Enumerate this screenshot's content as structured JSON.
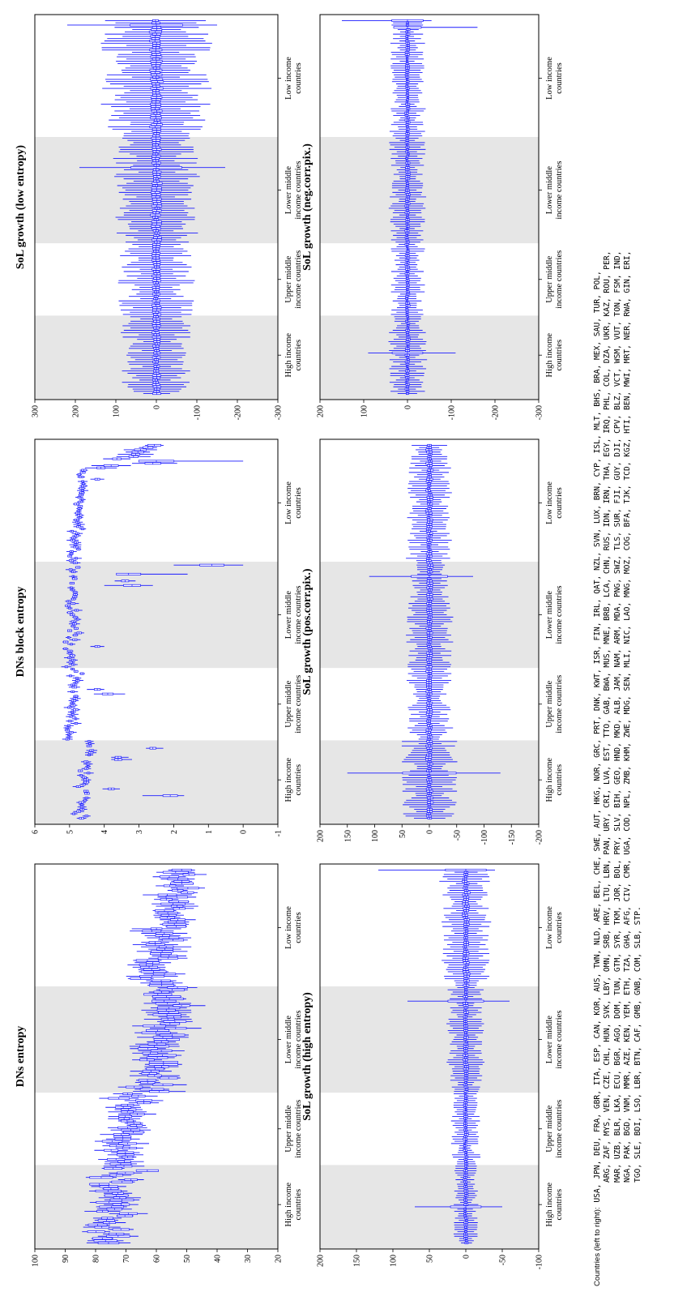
{
  "figure": {
    "band_labels": [
      [
        "High income",
        "countries"
      ],
      [
        "Upper middle",
        "income countries"
      ],
      [
        "Lower middle",
        "income countries"
      ],
      [
        "Low income",
        "countries"
      ]
    ],
    "caption_lead": "Countries (left to right):",
    "caption_lines": [
      "USA, JPN, DEU, FRA, GBR, ITA, ESP, CAN, KOR, AUS, TWN, NLD, ARE, BEL, CHE, SWE, AUT, HKG, NOR, GRC, PRT, DNK, KWT, ISR, FIN, IRL, QAT, NZL, SVN, LUX, BRN, CYP, ISL, MLT, BHS, BRA, MEX, SAU, TUR, POL,",
      "ARG, ZAF, MYS, VEN, CZE, CHL, HUN, SVK, LBY, OMN, SRB, HRV, LTU, LBN, PAN, URY, CRI, LVA, EST, TTO, GAB, BWA, MUS, MNE, BRB, LCA, CHN, RUS, IDN, IRN, THA, EGY, IRQ, PHL, COL, DZA, UKR, KAZ, ROU, PER,",
      "MAR, UZB, BLR, LKA, ECU, BGR, AGO, DOM, TUN, GTM, SYR, TKM, JOR, BOL, PRY, SLV, BIH, GEO, HND, MKD, ALB, JAM, NAM, ARM, MDA, PNG, SWZ, TLS, SUR, FJI, GUY, DJI, CPV, BLZ, VCT, WSM, VUT, TON, FSM, IND,",
      "NGA, PAK, BGD, VNM, MMR, AZE, KEN, YEM, ETH, TZA, GHA, AFG, CIV, CMR, UGA, COD, NPL, ZMB, KHM, ZWE, MDG, SEN, MLI, NIC, LAO, MNG, MOZ, COG, BFA, TJK, TCD, KGZ, HTI, BEN, MWI, MRT, NER, RWA, GIN, ERI,",
      "TGO, SLE, BDI, LSO, LBR, BTN, CAF, GMB, GNB, COM, SLB, STP."
    ],
    "colors": {
      "box": "#1a1aff",
      "band": "#e6e6e6",
      "axis": "#000000"
    }
  },
  "chart_data": [
    {
      "type": "box",
      "title": "DNs entropy",
      "ylim": [
        20,
        100
      ],
      "yticks": [
        20,
        30,
        40,
        50,
        60,
        70,
        80,
        90,
        100
      ],
      "ytick_labels": [
        "20",
        "30",
        "40",
        "50",
        "60",
        "70",
        "80",
        "90",
        "100"
      ],
      "income_groups_country_counts": [
        35,
        32,
        47,
        52
      ],
      "segments": [
        {
          "from": 0,
          "to": 35,
          "start": 75,
          "end": 72,
          "noise": 12,
          "spread": 5,
          "iqr": 6
        },
        {
          "from": 35,
          "to": 67,
          "start": 72,
          "end": 66,
          "noise": 9,
          "spread": 5,
          "iqr": 5
        },
        {
          "from": 67,
          "to": 114,
          "start": 62,
          "end": 55,
          "noise": 8,
          "spread": 6,
          "iqr": 7
        },
        {
          "from": 114,
          "to": 166,
          "start": 60,
          "end": 52,
          "noise": 7,
          "spread": 6,
          "iqr": 6
        }
      ]
    },
    {
      "type": "box",
      "title": "DNs block entropy",
      "ylim": [
        -1,
        6
      ],
      "yticks": [
        -1,
        0,
        1,
        2,
        3,
        4,
        5,
        6
      ],
      "ytick_labels": [
        "-1",
        "0",
        "1",
        "2",
        "3",
        "4",
        "5",
        "6"
      ],
      "income_groups_country_counts": [
        35,
        32,
        47,
        52
      ],
      "segments": [
        {
          "from": 0,
          "to": 35,
          "start": 4.7,
          "end": 4.4,
          "noise": 0.25,
          "spread": 0.12,
          "iqr": 0.1
        },
        {
          "from": 35,
          "to": 67,
          "start": 5.0,
          "end": 4.8,
          "noise": 0.2,
          "spread": 0.12,
          "iqr": 0.1
        },
        {
          "from": 67,
          "to": 114,
          "start": 5.0,
          "end": 4.8,
          "noise": 0.25,
          "spread": 0.12,
          "iqr": 0.1
        },
        {
          "from": 114,
          "to": 155,
          "start": 4.9,
          "end": 4.6,
          "noise": 0.2,
          "spread": 0.12,
          "iqr": 0.1
        },
        {
          "from": 155,
          "to": 166,
          "start": 4.0,
          "end": 2.6,
          "noise": 0.3,
          "spread": 0.4,
          "iqr": 0.35
        }
      ],
      "outliers": [
        {
          "country": 10,
          "median": 2.1,
          "lo": 1.7,
          "hi": 2.9
        },
        {
          "country": 13,
          "median": 3.8,
          "lo": 3.55,
          "hi": 4.05
        },
        {
          "country": 26,
          "median": 3.6,
          "lo": 3.2,
          "hi": 3.8
        },
        {
          "country": 27,
          "median": 3.6,
          "lo": 3.3,
          "hi": 3.8
        },
        {
          "country": 31,
          "median": 2.6,
          "lo": 2.3,
          "hi": 2.8
        },
        {
          "country": 55,
          "median": 3.9,
          "lo": 3.4,
          "hi": 4.3
        },
        {
          "country": 57,
          "median": 4.2,
          "lo": 4.0,
          "hi": 4.5
        },
        {
          "country": 76,
          "median": 4.2,
          "lo": 4.0,
          "hi": 4.4
        },
        {
          "country": 103,
          "median": 3.2,
          "lo": 2.6,
          "hi": 4.0
        },
        {
          "country": 105,
          "median": 3.4,
          "lo": 3.1,
          "hi": 3.7
        },
        {
          "country": 108,
          "median": 3.3,
          "lo": 1.6,
          "hi": 3.6
        },
        {
          "country": 112,
          "median": 0.9,
          "lo": 0.0,
          "hi": 2.0
        },
        {
          "country": 150,
          "median": 4.2,
          "lo": 4.0,
          "hi": 4.4
        },
        {
          "country": 157,
          "median": 2.6,
          "lo": 1.9,
          "hi": 3.2
        },
        {
          "country": 158,
          "median": 2.5,
          "lo": 0.0,
          "hi": 2.9
        }
      ]
    },
    {
      "type": "box",
      "title": "SoL growth (low entropy)",
      "ylim": [
        -300,
        300
      ],
      "yticks": [
        -300,
        -200,
        -100,
        0,
        100,
        200,
        300
      ],
      "ytick_labels": [
        "-300",
        "-200",
        "-100",
        "0",
        "100",
        "200",
        "300"
      ],
      "income_groups_country_counts": [
        35,
        32,
        47,
        52
      ],
      "segments": [
        {
          "from": 0,
          "to": 35,
          "start": 0,
          "end": 0,
          "noise": 4,
          "spread": 60,
          "iqr": 15
        },
        {
          "from": 35,
          "to": 67,
          "start": 0,
          "end": 0,
          "noise": 4,
          "spread": 65,
          "iqr": 16
        },
        {
          "from": 67,
          "to": 114,
          "start": 0,
          "end": 0,
          "noise": 4,
          "spread": 75,
          "iqr": 18
        },
        {
          "from": 114,
          "to": 166,
          "start": 0,
          "end": 0,
          "noise": 5,
          "spread": 95,
          "iqr": 22
        }
      ],
      "outliers": [
        {
          "country": 100,
          "median": 0,
          "lo": -170,
          "hi": 190
        },
        {
          "country": 163,
          "median": 0,
          "lo": -150,
          "hi": 220
        }
      ]
    },
    {
      "type": "box",
      "title": "SoL growth (high entropy)",
      "ylim": [
        -100,
        200
      ],
      "yticks": [
        -100,
        -50,
        0,
        50,
        100,
        150,
        200
      ],
      "ytick_labels": [
        "-100",
        "-50",
        "0",
        "50",
        "100",
        "150",
        "200"
      ],
      "income_groups_country_counts": [
        35,
        32,
        47,
        52
      ],
      "segments": [
        {
          "from": 0,
          "to": 35,
          "start": 0,
          "end": 0,
          "noise": 2,
          "spread": 12,
          "iqr": 4
        },
        {
          "from": 35,
          "to": 67,
          "start": 0,
          "end": 0,
          "noise": 2,
          "spread": 14,
          "iqr": 4
        },
        {
          "from": 67,
          "to": 114,
          "start": 0,
          "end": 0,
          "noise": 2,
          "spread": 18,
          "iqr": 5
        },
        {
          "from": 114,
          "to": 166,
          "start": 0,
          "end": 0,
          "noise": 3,
          "spread": 24,
          "iqr": 6
        }
      ],
      "outliers": [
        {
          "country": 16,
          "median": 0,
          "lo": -50,
          "hi": 70
        },
        {
          "country": 107,
          "median": 0,
          "lo": -60,
          "hi": 80
        },
        {
          "country": 165,
          "median": 0,
          "lo": -40,
          "hi": 120
        }
      ]
    },
    {
      "type": "box",
      "title": "SoL growth (pos.corr.pix.)",
      "ylim": [
        -200,
        200
      ],
      "yticks": [
        -200,
        -150,
        -100,
        -50,
        0,
        50,
        100,
        150,
        200
      ],
      "ytick_labels": [
        "-200",
        "-150",
        "-100",
        "-50",
        "0",
        "50",
        "100",
        "150",
        "200"
      ],
      "income_groups_country_counts": [
        35,
        32,
        47,
        52
      ],
      "segments": [
        {
          "from": 0,
          "to": 35,
          "start": 0,
          "end": 0,
          "noise": 3,
          "spread": 35,
          "iqr": 8
        },
        {
          "from": 35,
          "to": 67,
          "start": 0,
          "end": 0,
          "noise": 3,
          "spread": 30,
          "iqr": 8
        },
        {
          "from": 67,
          "to": 114,
          "start": 0,
          "end": 0,
          "noise": 3,
          "spread": 30,
          "iqr": 8
        },
        {
          "from": 114,
          "to": 166,
          "start": 0,
          "end": 0,
          "noise": 3,
          "spread": 28,
          "iqr": 8
        }
      ],
      "outliers": [
        {
          "country": 20,
          "median": 0,
          "lo": -130,
          "hi": 150
        },
        {
          "country": 107,
          "median": 0,
          "lo": -80,
          "hi": 110
        }
      ]
    },
    {
      "type": "box",
      "title": "SoL growth (neg.corr.pix.)",
      "ylim": [
        -300,
        200
      ],
      "yticks": [
        -300,
        -200,
        -100,
        0,
        100,
        200
      ],
      "ytick_labels": [
        "-300",
        "-200",
        "-100",
        "0",
        "100",
        "200"
      ],
      "income_groups_country_counts": [
        35,
        32,
        47,
        52
      ],
      "segments": [
        {
          "from": 0,
          "to": 35,
          "start": 0,
          "end": 0,
          "noise": 3,
          "spread": 30,
          "iqr": 7
        },
        {
          "from": 35,
          "to": 67,
          "start": 0,
          "end": 0,
          "noise": 3,
          "spread": 30,
          "iqr": 7
        },
        {
          "from": 67,
          "to": 114,
          "start": 0,
          "end": 0,
          "noise": 3,
          "spread": 30,
          "iqr": 7
        },
        {
          "from": 114,
          "to": 166,
          "start": 0,
          "end": 0,
          "noise": 3,
          "spread": 28,
          "iqr": 7
        }
      ],
      "outliers": [
        {
          "country": 18,
          "median": 0,
          "lo": -110,
          "hi": 90
        },
        {
          "country": 162,
          "median": 0,
          "lo": -160,
          "hi": 20
        },
        {
          "country": 165,
          "median": 0,
          "lo": -55,
          "hi": 150
        }
      ]
    }
  ]
}
